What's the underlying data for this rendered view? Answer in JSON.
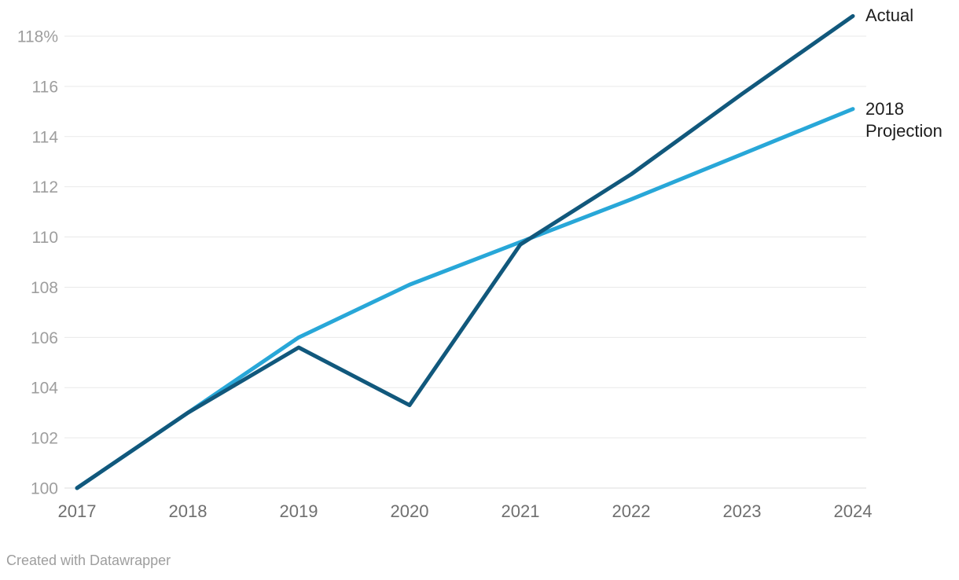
{
  "attribution": "Created with Datawrapper",
  "chart_data": {
    "type": "line",
    "title": "",
    "xlabel": "",
    "ylabel": "",
    "categories": [
      "2017",
      "2018",
      "2019",
      "2020",
      "2021",
      "2022",
      "2023",
      "2024"
    ],
    "series": [
      {
        "name": "Actual",
        "label": "Actual",
        "color": "#11587c",
        "values": [
          100,
          103,
          105.6,
          103.3,
          109.7,
          112.5,
          115.7,
          118.8
        ]
      },
      {
        "name": "2018 Projection",
        "label": "2018\nProjection",
        "color": "#28a7d8",
        "values": [
          100,
          103,
          106,
          108.1,
          109.8,
          111.5,
          113.3,
          115.1
        ]
      }
    ],
    "ylim": [
      100,
      118
    ],
    "yticks": [
      100,
      102,
      104,
      106,
      108,
      110,
      112,
      114,
      116,
      118
    ],
    "ytick_top_suffix": "%",
    "grid": "horizontal",
    "legend_position": "direct-right",
    "colors": {
      "gridline": "#e9e9e9",
      "y_tick_text": "#9e9e9e",
      "x_tick_text": "#6f6f6f",
      "label_text": "#1d1d1d",
      "attribution_text": "#9e9e9e"
    }
  }
}
